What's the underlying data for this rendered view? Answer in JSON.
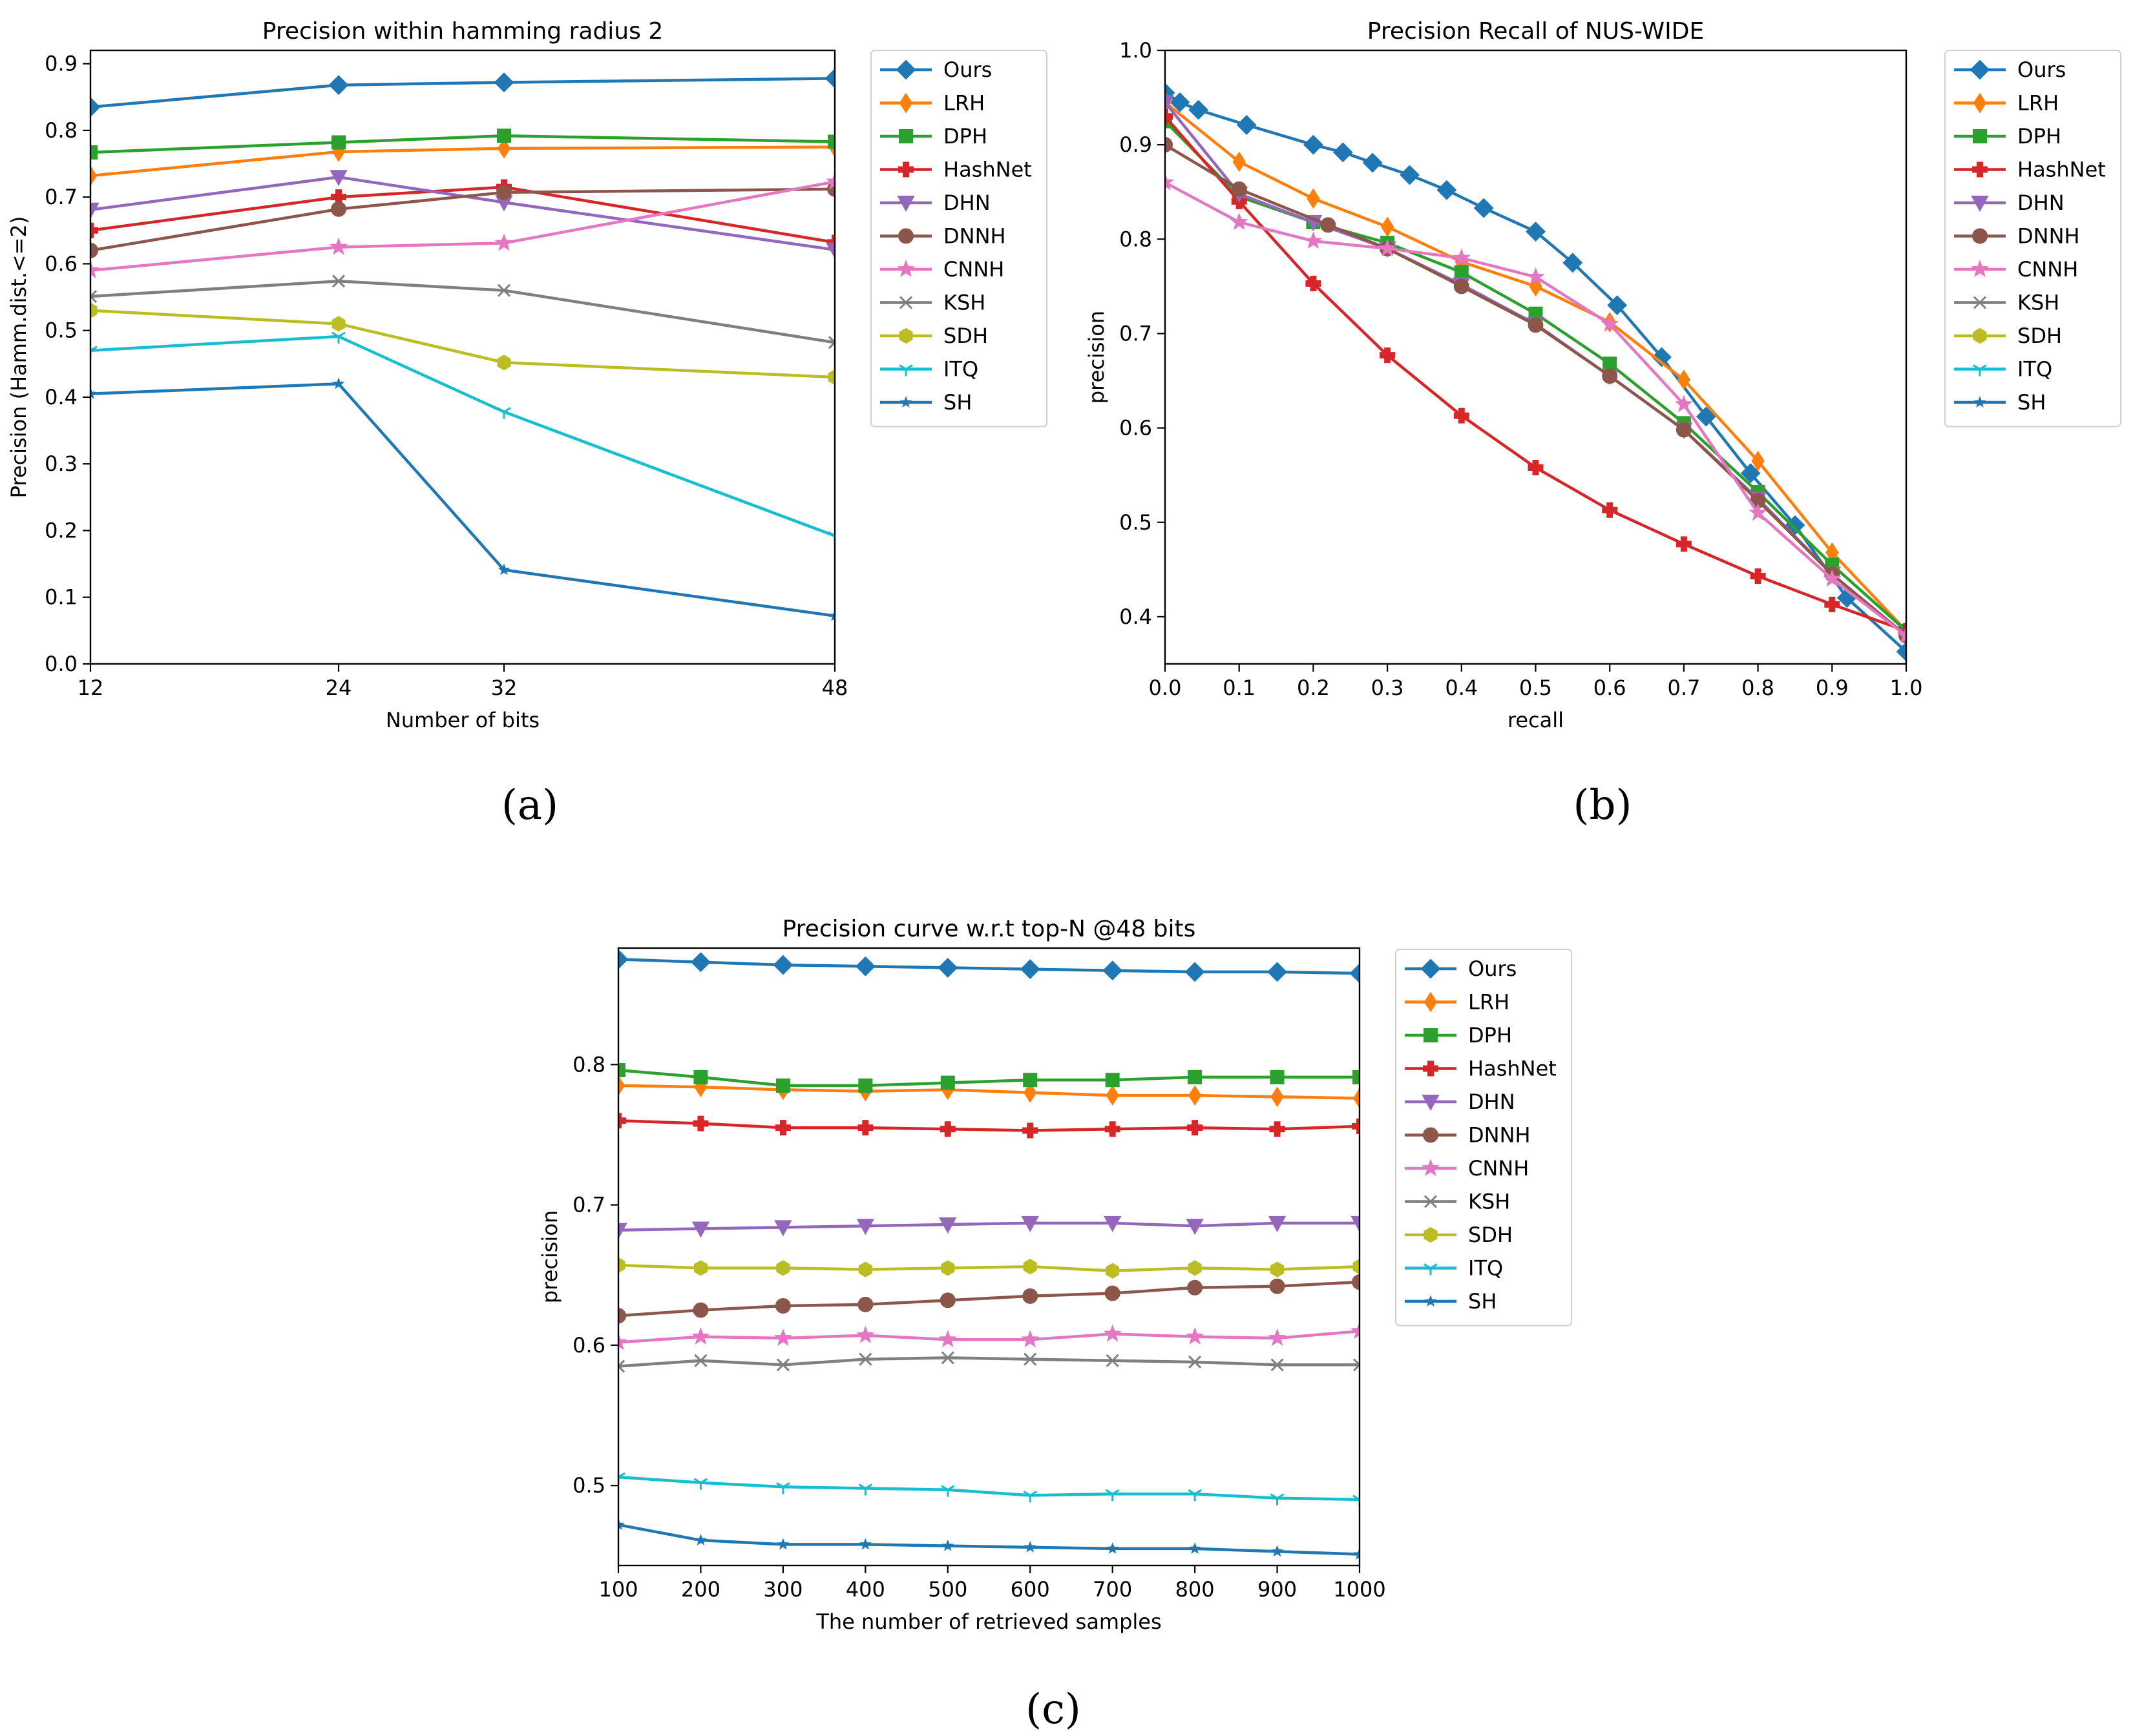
{
  "legend_entries": [
    "Ours",
    "LRH",
    "DPH",
    "HashNet",
    "DHN",
    "DNNH",
    "CNNH",
    "KSH",
    "SDH",
    "ITQ",
    "SH"
  ],
  "colors": {
    "Ours": "#1f77b4",
    "LRH": "#ff7f0e",
    "DPH": "#2ca02c",
    "HashNet": "#d62728",
    "DHN": "#9467bd",
    "DNNH": "#8c564b",
    "CNNH": "#e377c2",
    "KSH": "#7f7f7f",
    "SDH": "#bcbd22",
    "ITQ": "#17becf",
    "SH": "#1f77b4"
  },
  "markers": {
    "Ours": "diamond",
    "LRH": "thin-diamond",
    "DPH": "square",
    "HashNet": "plus",
    "DHN": "triangle-down",
    "DNNH": "circle",
    "CNNH": "star",
    "KSH": "x",
    "SDH": "hexagon",
    "ITQ": "tri-down",
    "SH": "small-star"
  },
  "chart_data": [
    {
      "id": "a",
      "type": "line",
      "caption": "(a)",
      "title": "Precision within hamming radius 2",
      "xlabel": "Number of bits",
      "ylabel": "Precision (Hamm.dist.<=2)",
      "x": [
        12,
        24,
        32,
        48
      ],
      "xticks": [
        12,
        24,
        32,
        48
      ],
      "xlim": [
        12,
        48
      ],
      "yticks": [
        0.0,
        0.1,
        0.2,
        0.3,
        0.4,
        0.5,
        0.6,
        0.7,
        0.8,
        0.9
      ],
      "ytick_labels": [
        "0.0",
        "0.1",
        "0.2",
        "0.3",
        "0.4",
        "0.5",
        "0.6",
        "0.7",
        "0.8",
        "0.9"
      ],
      "ylim": [
        0.0,
        0.92
      ],
      "series": [
        {
          "name": "Ours",
          "values": [
            0.835,
            0.868,
            0.872,
            0.878
          ]
        },
        {
          "name": "LRH",
          "values": [
            0.732,
            0.768,
            0.773,
            0.775
          ]
        },
        {
          "name": "DPH",
          "values": [
            0.767,
            0.782,
            0.792,
            0.783
          ]
        },
        {
          "name": "HashNet",
          "values": [
            0.65,
            0.7,
            0.715,
            0.632
          ]
        },
        {
          "name": "DHN",
          "values": [
            0.681,
            0.73,
            0.692,
            0.621
          ]
        },
        {
          "name": "DNNH",
          "values": [
            0.62,
            0.682,
            0.707,
            0.712
          ]
        },
        {
          "name": "CNNH",
          "values": [
            0.59,
            0.625,
            0.631,
            0.723
          ]
        },
        {
          "name": "KSH",
          "values": [
            0.551,
            0.574,
            0.56,
            0.482
          ]
        },
        {
          "name": "SDH",
          "values": [
            0.53,
            0.51,
            0.452,
            0.43
          ]
        },
        {
          "name": "ITQ",
          "values": [
            0.47,
            0.491,
            0.378,
            0.192
          ]
        },
        {
          "name": "SH",
          "values": [
            0.405,
            0.42,
            0.141,
            0.072
          ]
        }
      ]
    },
    {
      "id": "b",
      "type": "line",
      "caption": "(b)",
      "title": "Precision Recall of NUS-WIDE",
      "xlabel": "recall",
      "ylabel": "precision",
      "xticks": [
        0.0,
        0.1,
        0.2,
        0.3,
        0.4,
        0.5,
        0.6,
        0.7,
        0.8,
        0.9,
        1.0
      ],
      "xtick_labels": [
        "0.0",
        "0.1",
        "0.2",
        "0.3",
        "0.4",
        "0.5",
        "0.6",
        "0.7",
        "0.8",
        "0.9",
        "1.0"
      ],
      "xlim": [
        0.0,
        1.0
      ],
      "yticks": [
        0.4,
        0.5,
        0.6,
        0.7,
        0.8,
        0.9,
        1.0
      ],
      "ytick_labels": [
        "0.4",
        "0.5",
        "0.6",
        "0.7",
        "0.8",
        "0.9",
        "1.0"
      ],
      "ylim": [
        0.35,
        1.0
      ],
      "series": [
        {
          "name": "Ours",
          "x": [
            0.0,
            0.02,
            0.045,
            0.11,
            0.2,
            0.24,
            0.28,
            0.33,
            0.38,
            0.43,
            0.5,
            0.55,
            0.61,
            0.67,
            0.73,
            0.79,
            0.85,
            0.92,
            1.0
          ],
          "y": [
            0.955,
            0.945,
            0.937,
            0.921,
            0.9,
            0.892,
            0.881,
            0.868,
            0.852,
            0.833,
            0.808,
            0.775,
            0.73,
            0.675,
            0.612,
            0.552,
            0.497,
            0.42,
            0.363
          ]
        },
        {
          "name": "LRH",
          "x": [
            0.0,
            0.1,
            0.2,
            0.3,
            0.4,
            0.5,
            0.6,
            0.7,
            0.8,
            0.9,
            1.0
          ],
          "y": [
            0.945,
            0.882,
            0.843,
            0.813,
            0.776,
            0.75,
            0.712,
            0.651,
            0.565,
            0.468,
            0.385
          ]
        },
        {
          "name": "DPH",
          "x": [
            0.0,
            0.1,
            0.2,
            0.3,
            0.4,
            0.5,
            0.6,
            0.7,
            0.8,
            0.9,
            1.0
          ],
          "y": [
            0.925,
            0.845,
            0.818,
            0.796,
            0.765,
            0.721,
            0.668,
            0.605,
            0.532,
            0.455,
            0.385
          ]
        },
        {
          "name": "HashNet",
          "x": [
            0.0,
            0.1,
            0.2,
            0.3,
            0.4,
            0.5,
            0.6,
            0.7,
            0.8,
            0.9,
            1.0
          ],
          "y": [
            0.93,
            0.84,
            0.753,
            0.677,
            0.613,
            0.558,
            0.513,
            0.477,
            0.443,
            0.413,
            0.385
          ]
        },
        {
          "name": "DHN",
          "x": [
            0.0,
            0.1,
            0.2,
            0.3,
            0.4,
            0.5,
            0.6,
            0.7,
            0.8,
            0.9,
            1.0
          ],
          "y": [
            0.945,
            0.848,
            0.818,
            0.79,
            0.752,
            0.71,
            0.655,
            0.598,
            0.525,
            0.445,
            0.38
          ]
        },
        {
          "name": "DNNH",
          "x": [
            0.0,
            0.1,
            0.22,
            0.3,
            0.4,
            0.5,
            0.6,
            0.7,
            0.8,
            0.9,
            1.0
          ],
          "y": [
            0.9,
            0.853,
            0.815,
            0.79,
            0.75,
            0.709,
            0.655,
            0.598,
            0.523,
            0.445,
            0.38
          ]
        },
        {
          "name": "CNNH",
          "x": [
            0.0,
            0.1,
            0.2,
            0.3,
            0.4,
            0.5,
            0.6,
            0.7,
            0.8,
            0.9,
            1.0
          ],
          "y": [
            0.86,
            0.818,
            0.798,
            0.79,
            0.78,
            0.76,
            0.71,
            0.625,
            0.51,
            0.44,
            0.38
          ]
        },
        {
          "name": "KSH",
          "x": [],
          "y": []
        },
        {
          "name": "SDH",
          "x": [],
          "y": []
        },
        {
          "name": "ITQ",
          "x": [],
          "y": []
        },
        {
          "name": "SH",
          "x": [],
          "y": []
        }
      ]
    },
    {
      "id": "c",
      "type": "line",
      "caption": "(c)",
      "title": "Precision curve w.r.t top-N @48 bits",
      "xlabel": "The number of retrieved samples",
      "ylabel": "precision",
      "x": [
        100,
        200,
        300,
        400,
        500,
        600,
        700,
        800,
        900,
        1000
      ],
      "xticks": [
        100,
        200,
        300,
        400,
        500,
        600,
        700,
        800,
        900,
        1000
      ],
      "xlim": [
        100,
        1000
      ],
      "yticks": [
        0.5,
        0.6,
        0.7,
        0.8
      ],
      "ytick_labels": [
        "0.5",
        "0.6",
        "0.7",
        "0.8"
      ],
      "ylim": [
        0.443,
        0.883
      ],
      "series": [
        {
          "name": "Ours",
          "values": [
            0.875,
            0.873,
            0.871,
            0.87,
            0.869,
            0.868,
            0.867,
            0.866,
            0.866,
            0.865
          ]
        },
        {
          "name": "LRH",
          "values": [
            0.785,
            0.784,
            0.782,
            0.781,
            0.782,
            0.78,
            0.778,
            0.778,
            0.777,
            0.776
          ]
        },
        {
          "name": "DPH",
          "values": [
            0.796,
            0.791,
            0.785,
            0.785,
            0.787,
            0.789,
            0.789,
            0.791,
            0.791,
            0.791
          ]
        },
        {
          "name": "HashNet",
          "values": [
            0.76,
            0.758,
            0.755,
            0.755,
            0.754,
            0.753,
            0.754,
            0.755,
            0.754,
            0.756
          ]
        },
        {
          "name": "DHN",
          "values": [
            0.682,
            0.683,
            0.684,
            0.685,
            0.686,
            0.687,
            0.687,
            0.685,
            0.687,
            0.687
          ]
        },
        {
          "name": "DNNH",
          "values": [
            0.621,
            0.625,
            0.628,
            0.629,
            0.632,
            0.635,
            0.637,
            0.641,
            0.642,
            0.645
          ]
        },
        {
          "name": "CNNH",
          "values": [
            0.602,
            0.606,
            0.605,
            0.607,
            0.604,
            0.604,
            0.608,
            0.606,
            0.605,
            0.61
          ]
        },
        {
          "name": "KSH",
          "values": [
            0.585,
            0.589,
            0.586,
            0.59,
            0.591,
            0.59,
            0.589,
            0.588,
            0.586,
            0.586
          ]
        },
        {
          "name": "SDH",
          "values": [
            0.657,
            0.655,
            0.655,
            0.654,
            0.655,
            0.656,
            0.653,
            0.655,
            0.654,
            0.656
          ]
        },
        {
          "name": "ITQ",
          "values": [
            0.506,
            0.502,
            0.499,
            0.498,
            0.497,
            0.493,
            0.494,
            0.494,
            0.491,
            0.49
          ]
        },
        {
          "name": "SH",
          "values": [
            0.472,
            0.461,
            0.458,
            0.458,
            0.457,
            0.456,
            0.455,
            0.455,
            0.453,
            0.451
          ]
        }
      ]
    }
  ]
}
